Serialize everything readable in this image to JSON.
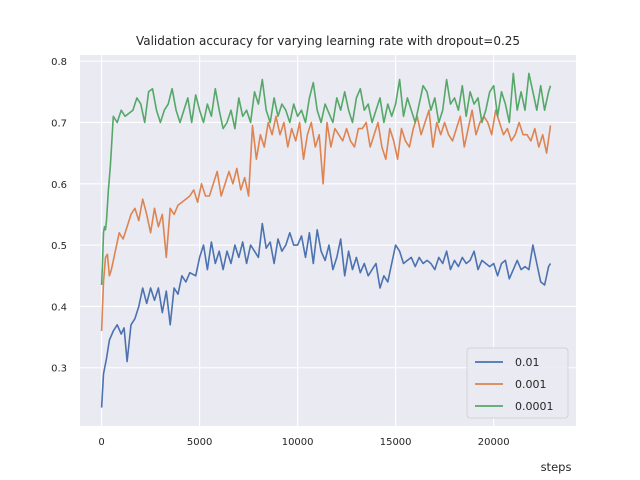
{
  "chart_data": {
    "type": "line",
    "title": "Validation accuracy for varying learning rate with dropout=0.25",
    "xlabel": "steps",
    "ylabel": "",
    "xlim": [
      -1100,
      24200
    ],
    "ylim": [
      0.205,
      0.81
    ],
    "xticks": [
      0,
      5000,
      10000,
      15000,
      20000
    ],
    "yticks": [
      0.3,
      0.4,
      0.5,
      0.6,
      0.7,
      0.8
    ],
    "xtick_labels": [
      "0",
      "5000",
      "10000",
      "15000",
      "20000"
    ],
    "ytick_labels": [
      "0.3",
      "0.4",
      "0.5",
      "0.6",
      "0.7",
      "0.8"
    ],
    "grid": true,
    "background": "#eaeaf2",
    "legend_position": "lower-right",
    "series": [
      {
        "name": "0.01",
        "color": "#4c72b0",
        "x": [
          0,
          100,
          250,
          400,
          600,
          800,
          1000,
          1150,
          1300,
          1500,
          1700,
          1900,
          2100,
          2300,
          2500,
          2700,
          2900,
          3100,
          3300,
          3500,
          3700,
          3900,
          4100,
          4300,
          4500,
          4800,
          5000,
          5200,
          5400,
          5600,
          5800,
          6000,
          6200,
          6400,
          6600,
          6800,
          7000,
          7200,
          7400,
          7600,
          7800,
          8000,
          8200,
          8400,
          8600,
          8800,
          9000,
          9200,
          9400,
          9600,
          9800,
          10000,
          10200,
          10400,
          10600,
          10800,
          11000,
          11200,
          11400,
          11600,
          11800,
          12000,
          12200,
          12400,
          12600,
          12800,
          13000,
          13200,
          13400,
          13600,
          13800,
          14000,
          14200,
          14400,
          14600,
          14800,
          15000,
          15200,
          15400,
          15600,
          15800,
          16000,
          16200,
          16400,
          16600,
          16800,
          17000,
          17200,
          17400,
          17600,
          17800,
          18000,
          18200,
          18400,
          18600,
          18800,
          19000,
          19200,
          19400,
          19600,
          19800,
          20000,
          20200,
          20400,
          20600,
          20800,
          21000,
          21200,
          21400,
          21600,
          21800,
          22000,
          22200,
          22400,
          22600,
          22800,
          22900
        ],
        "values": [
          0.235,
          0.29,
          0.315,
          0.345,
          0.36,
          0.37,
          0.355,
          0.365,
          0.31,
          0.37,
          0.38,
          0.4,
          0.43,
          0.405,
          0.43,
          0.41,
          0.43,
          0.39,
          0.425,
          0.37,
          0.43,
          0.42,
          0.45,
          0.44,
          0.455,
          0.45,
          0.48,
          0.5,
          0.46,
          0.505,
          0.47,
          0.49,
          0.46,
          0.49,
          0.47,
          0.5,
          0.48,
          0.505,
          0.47,
          0.5,
          0.49,
          0.48,
          0.535,
          0.495,
          0.505,
          0.47,
          0.51,
          0.49,
          0.5,
          0.52,
          0.5,
          0.5,
          0.515,
          0.48,
          0.52,
          0.47,
          0.525,
          0.49,
          0.475,
          0.5,
          0.46,
          0.48,
          0.51,
          0.45,
          0.49,
          0.46,
          0.48,
          0.455,
          0.47,
          0.45,
          0.46,
          0.47,
          0.43,
          0.45,
          0.44,
          0.47,
          0.5,
          0.49,
          0.47,
          0.475,
          0.48,
          0.465,
          0.48,
          0.47,
          0.475,
          0.47,
          0.46,
          0.48,
          0.47,
          0.49,
          0.46,
          0.475,
          0.465,
          0.48,
          0.47,
          0.475,
          0.49,
          0.46,
          0.475,
          0.47,
          0.465,
          0.47,
          0.45,
          0.47,
          0.475,
          0.445,
          0.46,
          0.475,
          0.46,
          0.465,
          0.46,
          0.5,
          0.47,
          0.44,
          0.435,
          0.465,
          0.47
        ]
      },
      {
        "name": "0.001",
        "color": "#dd8452",
        "x": [
          0,
          100,
          200,
          300,
          400,
          500,
          700,
          900,
          1100,
          1300,
          1500,
          1700,
          1900,
          2100,
          2300,
          2500,
          2700,
          2900,
          3100,
          3300,
          3500,
          3700,
          3900,
          4100,
          4300,
          4500,
          4700,
          4900,
          5100,
          5300,
          5500,
          5700,
          5900,
          6100,
          6300,
          6500,
          6700,
          6900,
          7100,
          7300,
          7500,
          7700,
          7900,
          8100,
          8300,
          8500,
          8700,
          8900,
          9100,
          9300,
          9500,
          9700,
          9900,
          10100,
          10300,
          10500,
          10700,
          10900,
          11100,
          11300,
          11500,
          11700,
          11900,
          12100,
          12300,
          12500,
          12700,
          12900,
          13100,
          13300,
          13500,
          13700,
          13900,
          14100,
          14300,
          14500,
          14700,
          14900,
          15100,
          15300,
          15500,
          15700,
          15900,
          16100,
          16300,
          16500,
          16700,
          16900,
          17100,
          17300,
          17500,
          17700,
          17900,
          18100,
          18300,
          18500,
          18700,
          18900,
          19100,
          19300,
          19500,
          19700,
          19900,
          20100,
          20300,
          20500,
          20700,
          20900,
          21100,
          21300,
          21500,
          21700,
          21900,
          22100,
          22300,
          22500,
          22700,
          22900
        ],
        "values": [
          0.36,
          0.44,
          0.48,
          0.485,
          0.45,
          0.46,
          0.49,
          0.52,
          0.51,
          0.53,
          0.55,
          0.56,
          0.54,
          0.575,
          0.55,
          0.52,
          0.56,
          0.53,
          0.55,
          0.48,
          0.56,
          0.55,
          0.565,
          0.57,
          0.575,
          0.58,
          0.59,
          0.57,
          0.6,
          0.58,
          0.58,
          0.6,
          0.62,
          0.58,
          0.6,
          0.62,
          0.6,
          0.625,
          0.59,
          0.61,
          0.58,
          0.695,
          0.64,
          0.68,
          0.66,
          0.7,
          0.68,
          0.71,
          0.68,
          0.7,
          0.66,
          0.69,
          0.67,
          0.7,
          0.64,
          0.68,
          0.7,
          0.66,
          0.68,
          0.6,
          0.7,
          0.66,
          0.69,
          0.68,
          0.67,
          0.69,
          0.67,
          0.66,
          0.69,
          0.69,
          0.7,
          0.66,
          0.68,
          0.7,
          0.66,
          0.64,
          0.69,
          0.67,
          0.64,
          0.69,
          0.67,
          0.66,
          0.69,
          0.71,
          0.68,
          0.7,
          0.72,
          0.66,
          0.7,
          0.68,
          0.7,
          0.68,
          0.67,
          0.69,
          0.71,
          0.66,
          0.69,
          0.72,
          0.68,
          0.7,
          0.71,
          0.7,
          0.68,
          0.72,
          0.7,
          0.68,
          0.69,
          0.67,
          0.68,
          0.7,
          0.68,
          0.68,
          0.67,
          0.69,
          0.66,
          0.68,
          0.65,
          0.695
        ]
      },
      {
        "name": "0.0001",
        "color": "#55a868",
        "x": [
          0,
          50,
          100,
          150,
          200,
          250,
          350,
          450,
          600,
          800,
          1000,
          1200,
          1400,
          1600,
          1800,
          2000,
          2200,
          2400,
          2600,
          2800,
          3000,
          3200,
          3400,
          3600,
          3800,
          4000,
          4200,
          4400,
          4600,
          4800,
          5000,
          5200,
          5400,
          5600,
          5800,
          6000,
          6200,
          6400,
          6600,
          6800,
          7000,
          7200,
          7400,
          7600,
          7800,
          8000,
          8200,
          8400,
          8600,
          8800,
          9000,
          9200,
          9400,
          9600,
          9800,
          10000,
          10200,
          10400,
          10600,
          10800,
          11000,
          11200,
          11400,
          11600,
          11800,
          12000,
          12200,
          12400,
          12600,
          12800,
          13000,
          13200,
          13400,
          13600,
          13800,
          14000,
          14200,
          14400,
          14600,
          14800,
          15000,
          15200,
          15400,
          15600,
          15800,
          16000,
          16200,
          16400,
          16600,
          16800,
          17000,
          17200,
          17400,
          17600,
          17800,
          18000,
          18200,
          18400,
          18600,
          18800,
          19000,
          19200,
          19400,
          19600,
          19800,
          20000,
          20200,
          20400,
          20600,
          20800,
          21000,
          21200,
          21400,
          21600,
          21800,
          22000,
          22200,
          22400,
          22600,
          22800,
          22900
        ],
        "values": [
          0.435,
          0.47,
          0.52,
          0.53,
          0.525,
          0.54,
          0.59,
          0.63,
          0.71,
          0.7,
          0.72,
          0.71,
          0.715,
          0.72,
          0.74,
          0.73,
          0.7,
          0.75,
          0.755,
          0.72,
          0.7,
          0.72,
          0.73,
          0.755,
          0.72,
          0.7,
          0.72,
          0.74,
          0.7,
          0.745,
          0.72,
          0.7,
          0.73,
          0.71,
          0.755,
          0.72,
          0.69,
          0.7,
          0.72,
          0.69,
          0.74,
          0.71,
          0.72,
          0.7,
          0.75,
          0.73,
          0.77,
          0.72,
          0.7,
          0.74,
          0.71,
          0.73,
          0.72,
          0.7,
          0.73,
          0.71,
          0.72,
          0.7,
          0.74,
          0.765,
          0.72,
          0.7,
          0.73,
          0.715,
          0.7,
          0.74,
          0.72,
          0.75,
          0.72,
          0.7,
          0.74,
          0.755,
          0.72,
          0.73,
          0.7,
          0.72,
          0.74,
          0.7,
          0.73,
          0.71,
          0.73,
          0.77,
          0.71,
          0.74,
          0.72,
          0.7,
          0.73,
          0.76,
          0.75,
          0.72,
          0.74,
          0.7,
          0.72,
          0.77,
          0.73,
          0.74,
          0.72,
          0.76,
          0.71,
          0.75,
          0.73,
          0.74,
          0.7,
          0.72,
          0.75,
          0.76,
          0.71,
          0.75,
          0.73,
          0.7,
          0.78,
          0.72,
          0.75,
          0.72,
          0.78,
          0.75,
          0.72,
          0.76,
          0.72,
          0.75,
          0.76
        ]
      }
    ]
  }
}
